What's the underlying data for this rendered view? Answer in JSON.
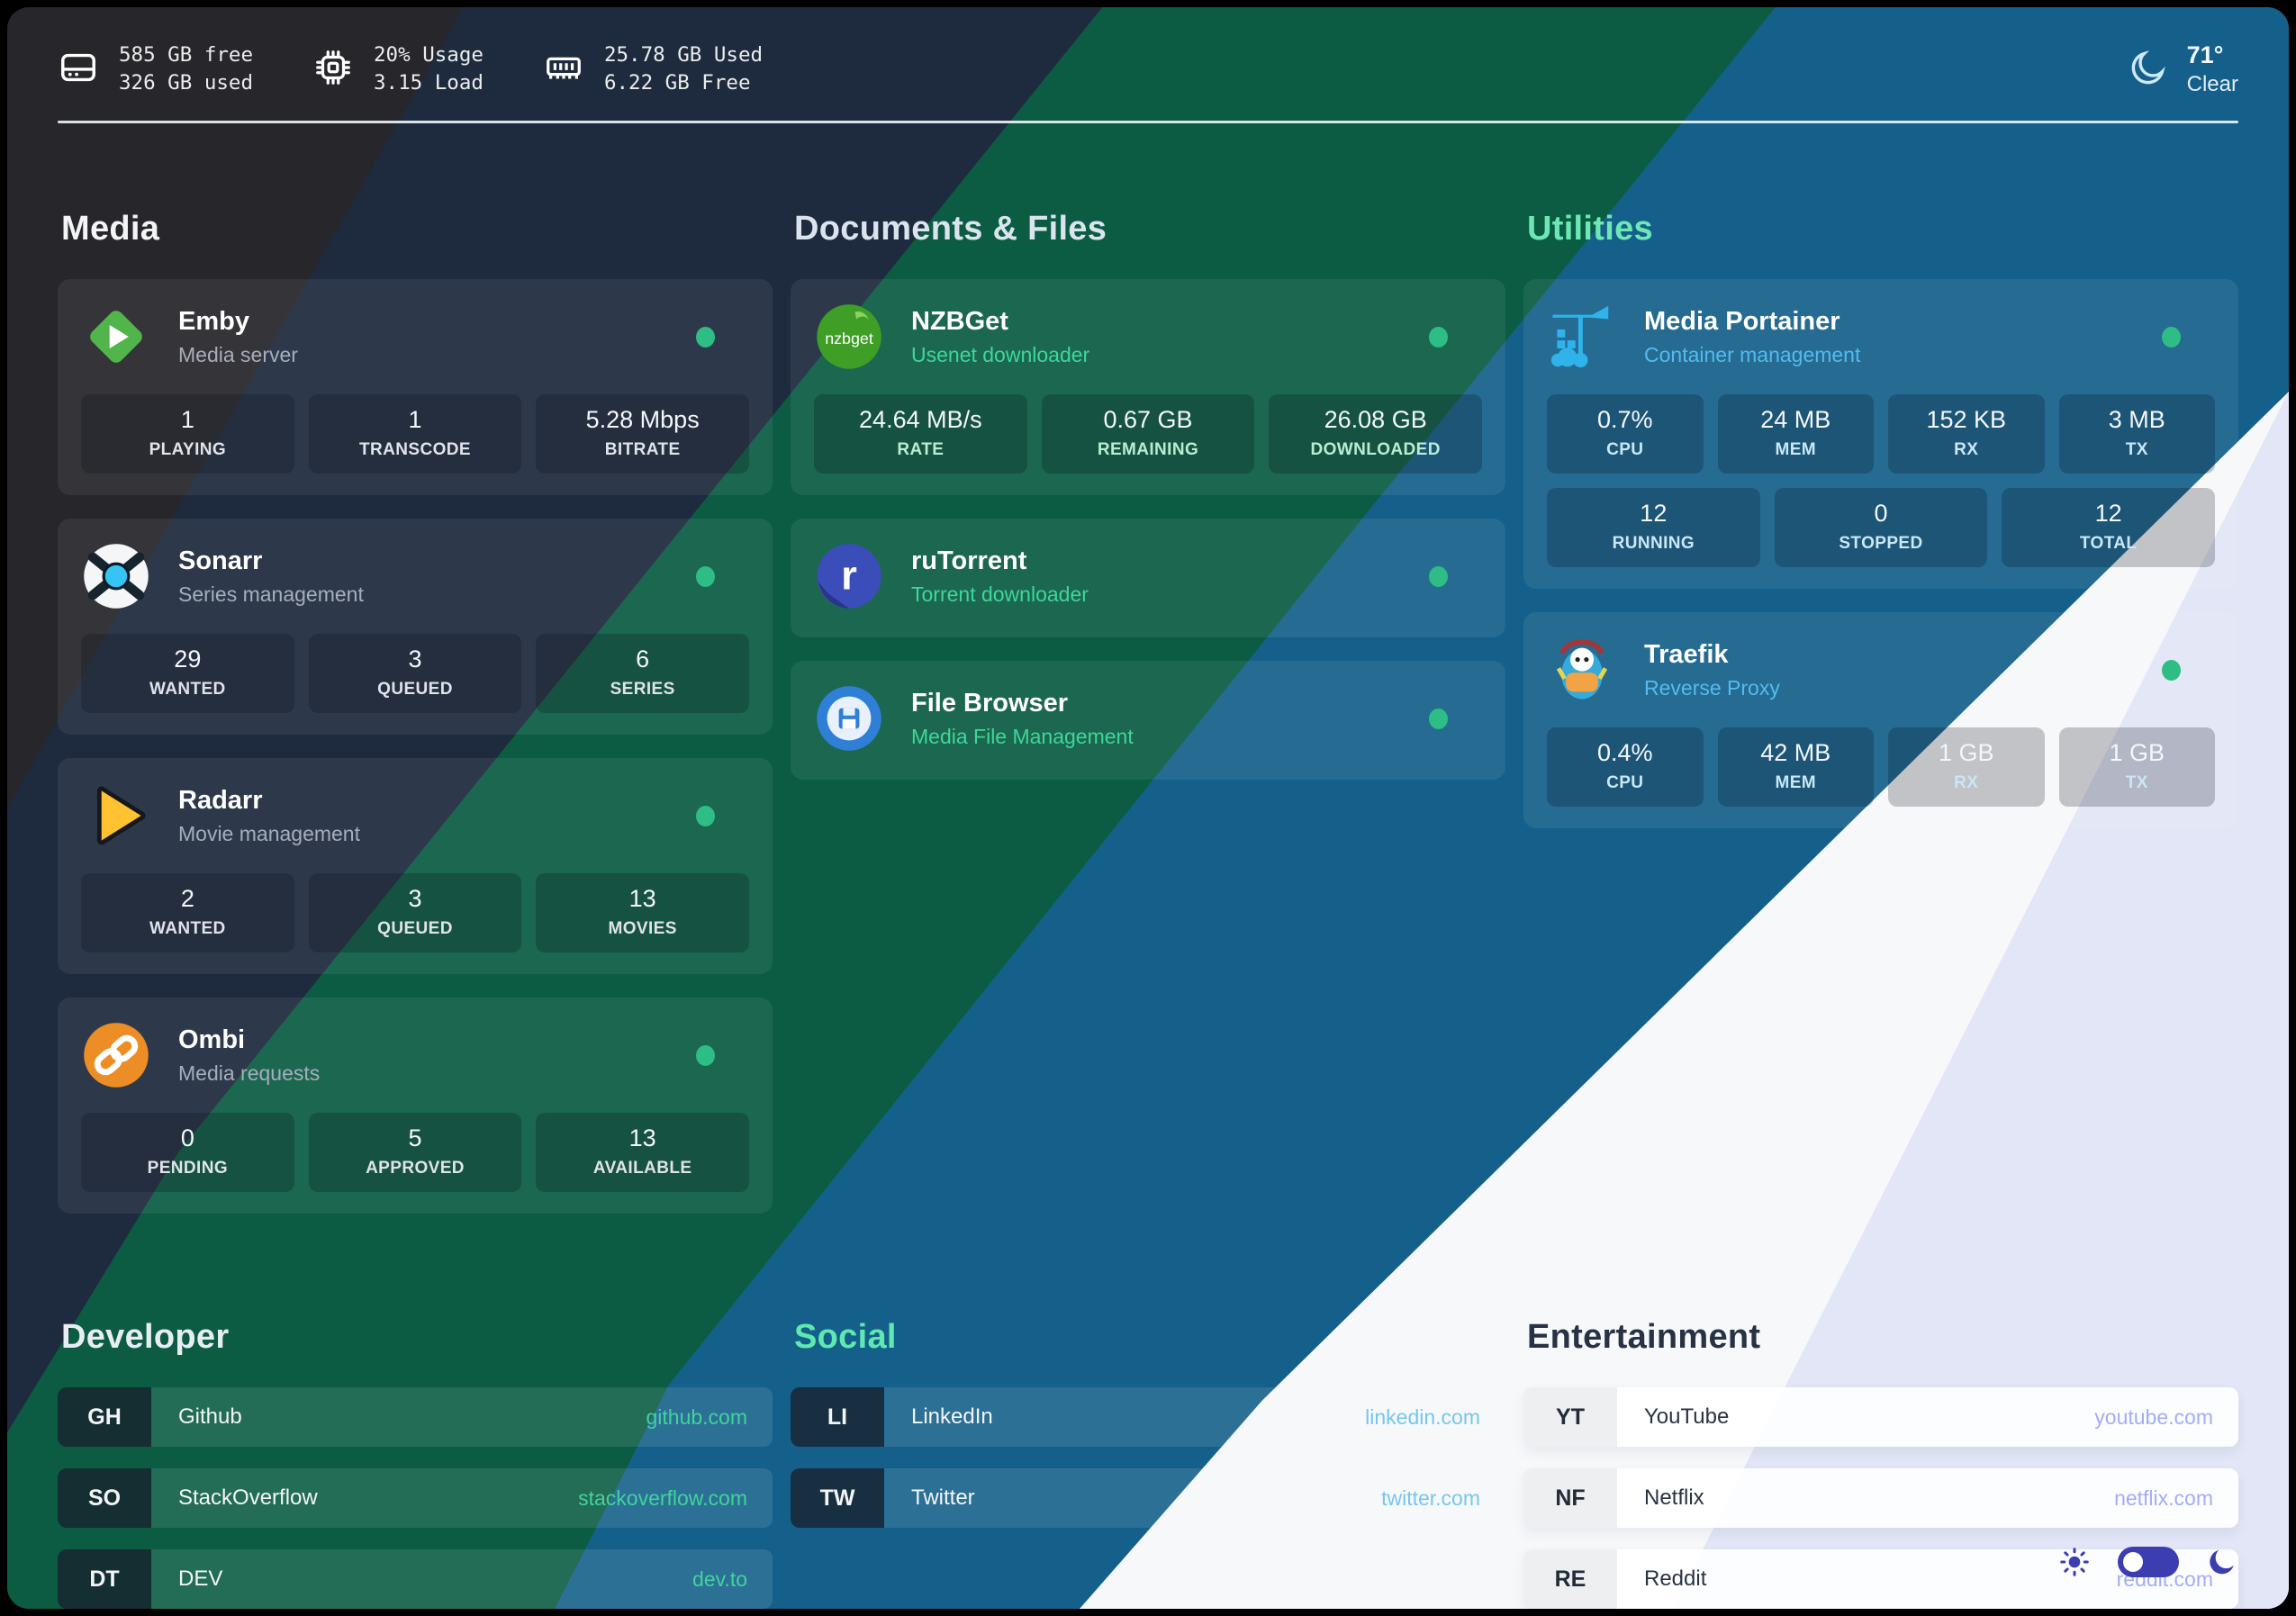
{
  "topbar": {
    "disk": {
      "icon": "harddrive-icon",
      "line1": "585 GB free",
      "line2": "326 GB used"
    },
    "cpu": {
      "icon": "cpu-icon",
      "line1": "20% Usage",
      "line2": "3.15 Load"
    },
    "memory": {
      "icon": "ram-icon",
      "line1": "25.78 GB Used",
      "line2": "6.22 GB Free"
    },
    "weather": {
      "icon": "moon-icon",
      "temp": "71°",
      "condition": "Clear"
    }
  },
  "service_groups": [
    {
      "title": "Media",
      "services": [
        {
          "icon": "emby-icon",
          "name": "Emby",
          "description": "Media server",
          "status": "online",
          "stat_rows": [
            [
              {
                "value": "1",
                "label": "PLAYING"
              },
              {
                "value": "1",
                "label": "TRANSCODE"
              },
              {
                "value": "5.28 Mbps",
                "label": "BITRATE"
              }
            ]
          ]
        },
        {
          "icon": "sonarr-icon",
          "name": "Sonarr",
          "description": "Series management",
          "status": "online",
          "stat_rows": [
            [
              {
                "value": "29",
                "label": "WANTED"
              },
              {
                "value": "3",
                "label": "QUEUED"
              },
              {
                "value": "6",
                "label": "SERIES"
              }
            ]
          ]
        },
        {
          "icon": "radarr-icon",
          "name": "Radarr",
          "description": "Movie management",
          "status": "online",
          "stat_rows": [
            [
              {
                "value": "2",
                "label": "WANTED"
              },
              {
                "value": "3",
                "label": "QUEUED"
              },
              {
                "value": "13",
                "label": "MOVIES"
              }
            ]
          ]
        },
        {
          "icon": "ombi-icon",
          "name": "Ombi",
          "description": "Media requests",
          "status": "online",
          "stat_rows": [
            [
              {
                "value": "0",
                "label": "PENDING"
              },
              {
                "value": "5",
                "label": "APPROVED"
              },
              {
                "value": "13",
                "label": "AVAILABLE"
              }
            ]
          ]
        }
      ]
    },
    {
      "title": "Documents & Files",
      "services": [
        {
          "icon": "nzbget-icon",
          "name": "NZBGet",
          "description": "Usenet downloader",
          "status": "online",
          "stat_rows": [
            [
              {
                "value": "24.64 MB/s",
                "label": "RATE"
              },
              {
                "value": "0.67 GB",
                "label": "REMAINING"
              },
              {
                "value": "26.08 GB",
                "label": "DOWNLOADED"
              }
            ]
          ]
        },
        {
          "icon": "rutorrent-icon",
          "name": "ruTorrent",
          "description": "Torrent downloader",
          "status": "online",
          "stat_rows": []
        },
        {
          "icon": "filebrowser-icon",
          "name": "File Browser",
          "description": "Media File Management",
          "status": "online",
          "stat_rows": []
        }
      ]
    },
    {
      "title": "Utilities",
      "services": [
        {
          "icon": "portainer-icon",
          "name": "Media Portainer",
          "description": "Container management",
          "status": "online",
          "stat_rows": [
            [
              {
                "value": "0.7%",
                "label": "CPU"
              },
              {
                "value": "24 MB",
                "label": "MEM"
              },
              {
                "value": "152 KB",
                "label": "RX"
              },
              {
                "value": "3 MB",
                "label": "TX"
              }
            ],
            [
              {
                "value": "12",
                "label": "RUNNING"
              },
              {
                "value": "0",
                "label": "STOPPED"
              },
              {
                "value": "12",
                "label": "TOTAL"
              }
            ]
          ]
        },
        {
          "icon": "traefik-icon",
          "name": "Traefik",
          "description": "Reverse Proxy",
          "status": "online",
          "stat_rows": [
            [
              {
                "value": "0.4%",
                "label": "CPU"
              },
              {
                "value": "42 MB",
                "label": "MEM"
              },
              {
                "value": "1 GB",
                "label": "RX"
              },
              {
                "value": "1 GB",
                "label": "TX"
              }
            ]
          ]
        }
      ]
    }
  ],
  "bookmark_groups": [
    {
      "title": "Developer",
      "links": [
        {
          "abbr": "GH",
          "name": "Github",
          "url": "github.com"
        },
        {
          "abbr": "SO",
          "name": "StackOverflow",
          "url": "stackoverflow.com"
        },
        {
          "abbr": "DT",
          "name": "DEV",
          "url": "dev.to"
        }
      ]
    },
    {
      "title": "Social",
      "links": [
        {
          "abbr": "LI",
          "name": "LinkedIn",
          "url": "linkedin.com"
        },
        {
          "abbr": "TW",
          "name": "Twitter",
          "url": "twitter.com"
        }
      ]
    },
    {
      "title": "Entertainment",
      "links": [
        {
          "abbr": "YT",
          "name": "YouTube",
          "url": "youtube.com"
        },
        {
          "abbr": "NF",
          "name": "Netflix",
          "url": "netflix.com"
        },
        {
          "abbr": "RE",
          "name": "Reddit",
          "url": "reddit.com"
        }
      ]
    }
  ],
  "colors": {
    "status_online": "#2ebd85",
    "band_charcoal": "#26262b",
    "band_navy": "#1e2b3e",
    "band_green": "#0b5c43",
    "band_blue": "#15608a",
    "band_white": "#f7f8fa",
    "band_lavender": "#e2e6f6",
    "accent_mint": "#6ee7b7",
    "accent_sky": "#54bbee",
    "toggle_indigo": "#3d3db2"
  }
}
